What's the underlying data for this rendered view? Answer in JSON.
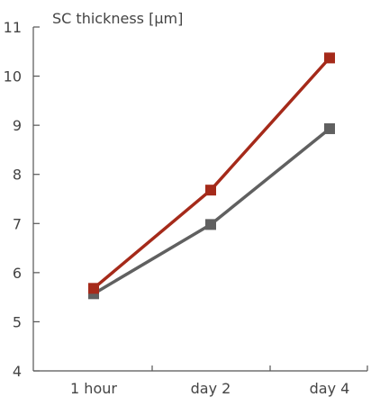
{
  "chart_data": {
    "type": "line",
    "ylabel": "SC thickness [µm]",
    "categories": [
      "1 hour",
      "day 2",
      "day 4"
    ],
    "ylim": [
      4,
      11
    ],
    "yticks": [
      4,
      5,
      6,
      7,
      8,
      9,
      10,
      11
    ],
    "grid": false,
    "legend": "none",
    "series": [
      {
        "color": "#a52a1a",
        "marker": "square",
        "values": [
          5.68,
          7.68,
          10.37
        ]
      },
      {
        "color": "#606060",
        "marker": "square",
        "values": [
          5.57,
          6.98,
          8.93
        ]
      }
    ]
  }
}
